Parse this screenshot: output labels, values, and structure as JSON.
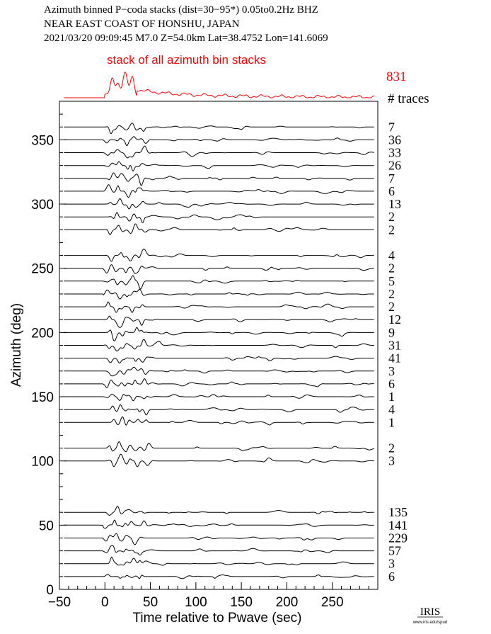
{
  "header": {
    "line1": "Azimuth binned P−coda stacks (dist=30−95*)  0.05to0.2Hz  BHZ",
    "line2": "NEAR EAST COAST OF HONSHU, JAPAN",
    "line3": "2021/03/20  09:09:45  M7.0  Z=54.0km Lat=38.4752 Lon=141.6069"
  },
  "stack": {
    "label": "stack of all azimuth bin stacks",
    "count": "831",
    "count_header": "# traces",
    "color": "#ff0000"
  },
  "chart_data": {
    "type": "line",
    "xlabel": "Time relative to Pwave (sec)",
    "ylabel": "Azimuth (deg)",
    "xlim": [
      -50,
      300
    ],
    "ylim": [
      0,
      380
    ],
    "xticks": [
      "−50",
      "0",
      "50",
      "100",
      "150",
      "200",
      "250"
    ],
    "yticks": [
      "0",
      "50",
      "100",
      "150",
      "200",
      "250",
      "300",
      "350"
    ],
    "trace_color": "#000000",
    "series": [
      {
        "azimuth": 360,
        "traces": "7"
      },
      {
        "azimuth": 350,
        "traces": "36"
      },
      {
        "azimuth": 340,
        "traces": "33"
      },
      {
        "azimuth": 330,
        "traces": "26"
      },
      {
        "azimuth": 320,
        "traces": "7"
      },
      {
        "azimuth": 310,
        "traces": "6"
      },
      {
        "azimuth": 300,
        "traces": "13"
      },
      {
        "azimuth": 290,
        "traces": "2"
      },
      {
        "azimuth": 280,
        "traces": "2"
      },
      {
        "azimuth": 260,
        "traces": "4"
      },
      {
        "azimuth": 250,
        "traces": "2"
      },
      {
        "azimuth": 240,
        "traces": "5"
      },
      {
        "azimuth": 230,
        "traces": "2"
      },
      {
        "azimuth": 220,
        "traces": "2"
      },
      {
        "azimuth": 210,
        "traces": "12"
      },
      {
        "azimuth": 200,
        "traces": "9"
      },
      {
        "azimuth": 190,
        "traces": "31"
      },
      {
        "azimuth": 180,
        "traces": "41"
      },
      {
        "azimuth": 170,
        "traces": "3"
      },
      {
        "azimuth": 160,
        "traces": "6"
      },
      {
        "azimuth": 150,
        "traces": "1"
      },
      {
        "azimuth": 140,
        "traces": "4"
      },
      {
        "azimuth": 130,
        "traces": "1"
      },
      {
        "azimuth": 110,
        "traces": "2"
      },
      {
        "azimuth": 100,
        "traces": "3"
      },
      {
        "azimuth": 60,
        "traces": "135"
      },
      {
        "azimuth": 50,
        "traces": "141"
      },
      {
        "azimuth": 40,
        "traces": "229"
      },
      {
        "azimuth": 30,
        "traces": "57"
      },
      {
        "azimuth": 20,
        "traces": "3"
      },
      {
        "azimuth": 10,
        "traces": "6"
      }
    ]
  },
  "logo": {
    "text": "IRIS",
    "url_text": "www.iris.edu/spud"
  }
}
